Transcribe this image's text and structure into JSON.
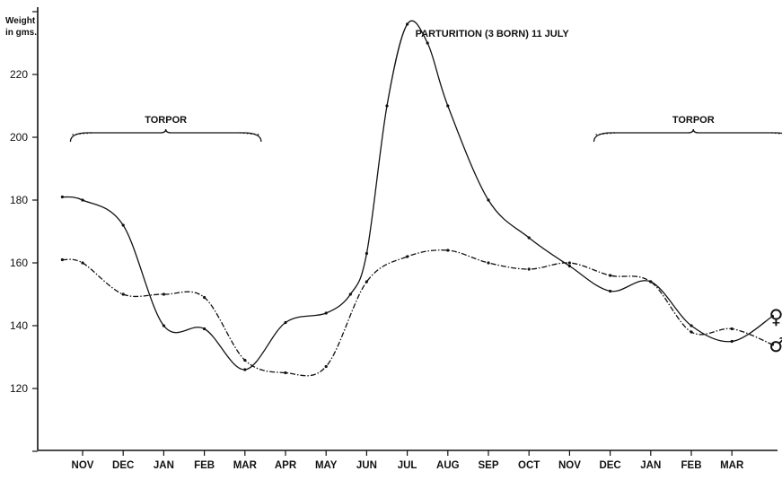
{
  "chart_data": {
    "type": "line",
    "ylabel_line1": "Weight",
    "ylabel_line2": "in gms.",
    "ylim": [
      100,
      240
    ],
    "yticks": [
      120,
      140,
      160,
      180,
      200,
      220
    ],
    "categories": [
      "NOV",
      "DEC",
      "JAN",
      "FEB",
      "MAR",
      "APR",
      "MAY",
      "JUN",
      "JUL",
      "AUG",
      "SEP",
      "OCT",
      "NOV",
      "DEC",
      "JAN",
      "FEB",
      "MAR"
    ],
    "series": [
      {
        "name": "♀",
        "style": "solid",
        "x": [
          -0.5,
          0,
          1,
          2,
          3,
          4,
          5,
          6,
          6.6,
          7,
          7.5,
          8,
          8.5,
          9,
          10,
          11,
          12,
          13,
          14,
          15,
          16,
          17
        ],
        "values": [
          181,
          180,
          172,
          140,
          139,
          126,
          141,
          144,
          150,
          163,
          210,
          236,
          230,
          210,
          180,
          168,
          159,
          151,
          154,
          140,
          135,
          143
        ]
      },
      {
        "name": "♂",
        "style": "dash-dot",
        "x": [
          -0.5,
          0,
          1,
          2,
          3,
          4,
          5,
          6,
          7,
          8,
          9,
          10,
          11,
          12,
          13,
          14,
          15,
          16,
          17
        ],
        "values": [
          161,
          160,
          150,
          150,
          149,
          129,
          125,
          127,
          154,
          162,
          164,
          160,
          158,
          160,
          156,
          154,
          138,
          139,
          134
        ]
      }
    ],
    "annotations": [
      {
        "text": "TORPOR",
        "x_from": -0.3,
        "x_to": 4.4,
        "y": 200
      },
      {
        "text": "TORPOR",
        "x_from": 12.6,
        "x_to": 17.5,
        "y": 200
      },
      {
        "text": "PARTURITION (3 BORN)  11 JULY",
        "x": 8.2,
        "y": 232
      }
    ]
  }
}
